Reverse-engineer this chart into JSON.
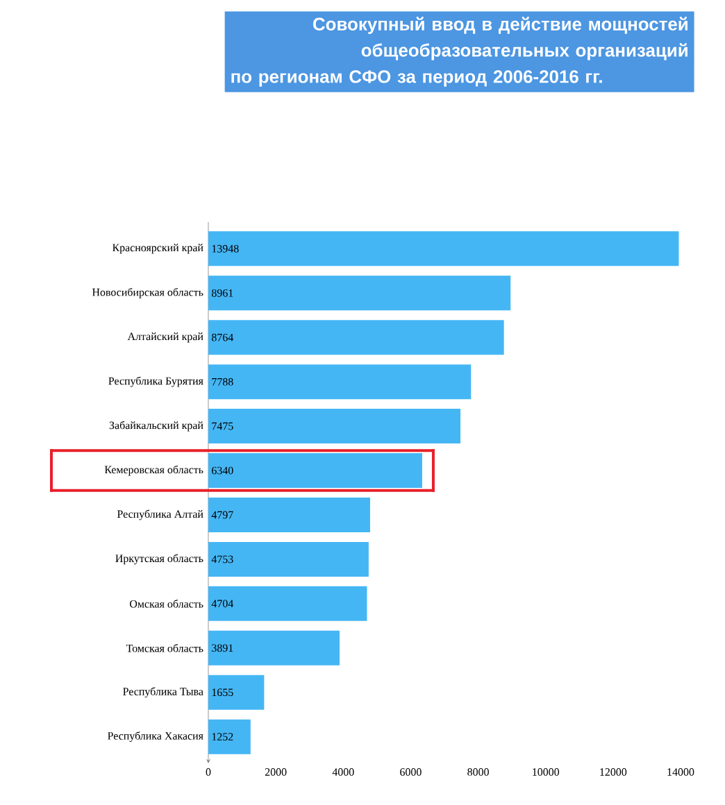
{
  "chart_data": {
    "type": "bar",
    "orientation": "horizontal",
    "title": "Совокупный ввод в действие мощностей\nобщеобразовательных организаций\nпо регионам СФО за период 2006-2016 гг.",
    "categories": [
      "Красноярский край",
      "Новосибирская область",
      "Алтайский край",
      "Республика Бурятия",
      "Забайкальский край",
      "Кемеровская область",
      "Республика Алтай",
      "Иркутская область",
      "Омская область",
      "Томская область",
      "Республика Тыва",
      "Республика Хакасия"
    ],
    "values": [
      13948,
      8961,
      8764,
      7788,
      7475,
      6340,
      4797,
      4753,
      4704,
      3891,
      1655,
      1252
    ],
    "color": "#45b6f4",
    "data_labels": true,
    "xlim": [
      0,
      14000
    ],
    "xticks": [
      0,
      2000,
      4000,
      6000,
      8000,
      10000,
      12000,
      14000
    ]
  }
}
